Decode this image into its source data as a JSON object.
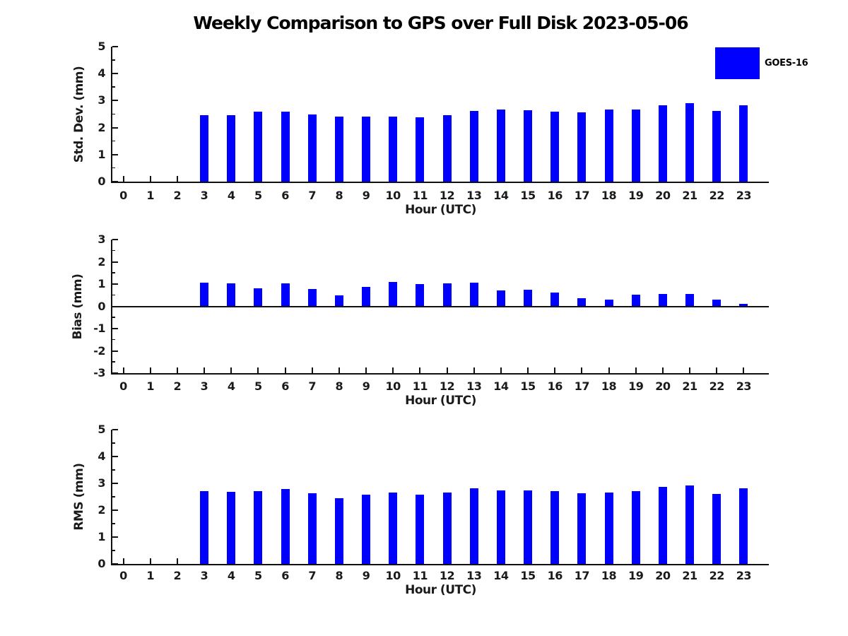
{
  "title": "Weekly Comparison to GPS over Full Disk 2023-05-06",
  "legend": {
    "label": "GOES-16",
    "color": "#0000FF"
  },
  "bar_color": "#0000FF",
  "chart_data": [
    {
      "type": "bar",
      "name": "std-dev",
      "ylabel": "Std. Dev. (mm)",
      "xlabel": "Hour (UTC)",
      "ylim": [
        0,
        5
      ],
      "yticks": [
        0,
        1,
        2,
        3,
        4,
        5
      ],
      "grid": false,
      "legend_position": "upper-right-outside",
      "categories": [
        "0",
        "1",
        "2",
        "3",
        "4",
        "5",
        "6",
        "7",
        "8",
        "9",
        "10",
        "11",
        "12",
        "13",
        "14",
        "15",
        "16",
        "17",
        "18",
        "19",
        "20",
        "21",
        "22",
        "23"
      ],
      "values": [
        null,
        null,
        null,
        2.47,
        2.47,
        2.58,
        2.58,
        2.5,
        2.4,
        2.4,
        2.4,
        2.37,
        2.45,
        2.62,
        2.66,
        2.65,
        2.6,
        2.57,
        2.66,
        2.66,
        2.82,
        2.9,
        2.61,
        2.82
      ]
    },
    {
      "type": "bar",
      "name": "bias",
      "ylabel": "Bias (mm)",
      "xlabel": "Hour (UTC)",
      "ylim": [
        -3,
        3
      ],
      "yticks": [
        -3,
        -2,
        -1,
        0,
        1,
        2,
        3
      ],
      "grid": false,
      "categories": [
        "0",
        "1",
        "2",
        "3",
        "4",
        "5",
        "6",
        "7",
        "8",
        "9",
        "10",
        "11",
        "12",
        "13",
        "14",
        "15",
        "16",
        "17",
        "18",
        "19",
        "20",
        "21",
        "22",
        "23"
      ],
      "values": [
        null,
        null,
        null,
        1.06,
        1.04,
        0.82,
        1.03,
        0.77,
        0.48,
        0.88,
        1.08,
        0.99,
        1.02,
        1.07,
        0.7,
        0.74,
        0.62,
        0.38,
        0.29,
        0.53,
        0.54,
        0.54,
        0.31,
        0.12
      ]
    },
    {
      "type": "bar",
      "name": "rms",
      "ylabel": "RMS (mm)",
      "xlabel": "Hour (UTC)",
      "ylim": [
        0,
        5
      ],
      "yticks": [
        0,
        1,
        2,
        3,
        4,
        5
      ],
      "grid": false,
      "categories": [
        "0",
        "1",
        "2",
        "3",
        "4",
        "5",
        "6",
        "7",
        "8",
        "9",
        "10",
        "11",
        "12",
        "13",
        "14",
        "15",
        "16",
        "17",
        "18",
        "19",
        "20",
        "21",
        "22",
        "23"
      ],
      "values": [
        null,
        null,
        null,
        2.7,
        2.68,
        2.7,
        2.78,
        2.62,
        2.45,
        2.57,
        2.65,
        2.57,
        2.65,
        2.82,
        2.73,
        2.75,
        2.71,
        2.62,
        2.67,
        2.7,
        2.88,
        2.93,
        2.61,
        2.82
      ]
    }
  ]
}
